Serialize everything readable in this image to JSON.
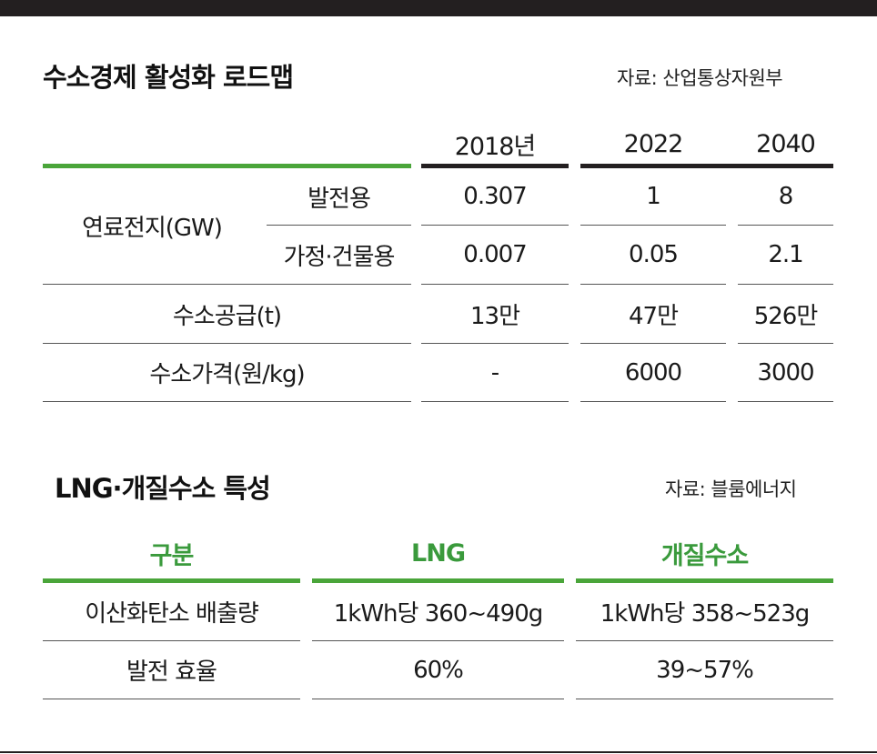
{
  "table1": {
    "title": "수소경제 활성화 로드맵",
    "source": "자료: 산업통상자원부",
    "columns": [
      "2018년",
      "2022",
      "2040"
    ],
    "group_label": "연료전지(GW)",
    "rows": [
      {
        "label": "발전용",
        "values": [
          "0.307",
          "1",
          "8"
        ]
      },
      {
        "label": "가정·건물용",
        "values": [
          "0.007",
          "0.05",
          "2.1"
        ]
      },
      {
        "label": "수소공급(t)",
        "values": [
          "13만",
          "47만",
          "526만"
        ]
      },
      {
        "label": "수소가격(원/kg)",
        "values": [
          "-",
          "6000",
          "3000"
        ]
      }
    ]
  },
  "table2": {
    "title": "LNG·개질수소 특성",
    "source": "자료: 블룸에너지",
    "columns": [
      "구분",
      "LNG",
      "개질수소"
    ],
    "rows": [
      {
        "label": "이산화탄소 배출량",
        "values": [
          "1kWh당 360~490g",
          "1kWh당 358~523g"
        ]
      },
      {
        "label": "발전 효율",
        "values": [
          "60%",
          "39~57%"
        ]
      }
    ]
  },
  "colors": {
    "accent_green": "#4aa53a",
    "header_green_text": "#3a9a3c",
    "dark": "#231f20"
  }
}
